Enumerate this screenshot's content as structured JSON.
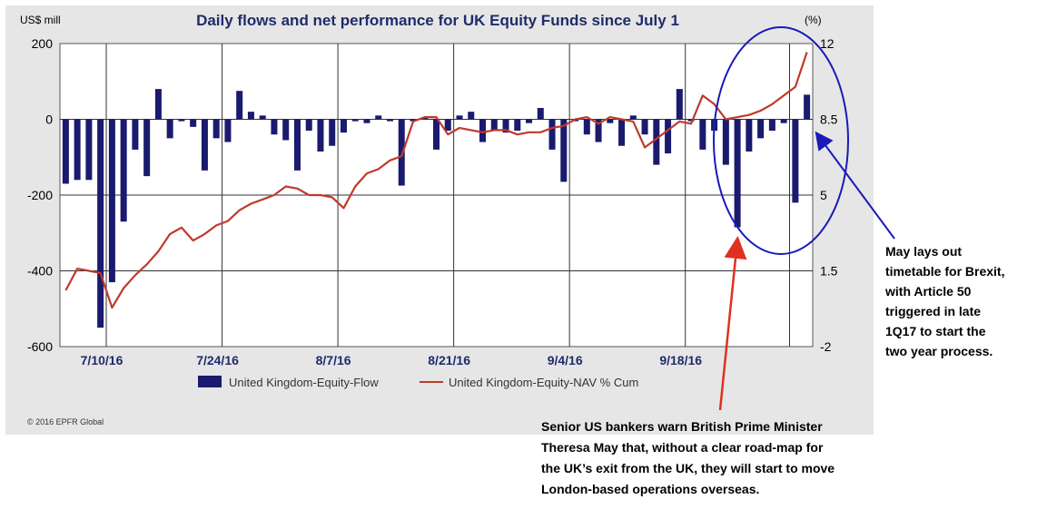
{
  "chart_data": {
    "type": "bar",
    "title": "Daily flows and net performance for UK Equity Funds since July 1",
    "y_left_unit": "US$ mill",
    "y_right_unit": "(%)",
    "ylim_left": [
      -600,
      200
    ],
    "ylim_right": [
      -2,
      12
    ],
    "y_left_ticks": [
      "200",
      "0",
      "-200",
      "-400",
      "-600"
    ],
    "y_right_ticks": [
      "12",
      "8.5",
      "5",
      "1.5",
      "-2"
    ],
    "x_tick_labels": [
      "7/10/16",
      "7/24/16",
      "8/7/16",
      "8/21/16",
      "9/4/16",
      "9/18/16"
    ],
    "grid": true,
    "legend_position": "bottom",
    "copyright": "© 2016 EPFR Global",
    "series": [
      {
        "name": "United Kingdom-Equity-Flow",
        "kind": "bar",
        "axis": "left",
        "color": "#1a1a6e",
        "values": [
          -170,
          -160,
          -160,
          -550,
          -430,
          -270,
          -80,
          -150,
          80,
          -50,
          -5,
          -20,
          -135,
          -50,
          -60,
          75,
          20,
          10,
          -40,
          -55,
          -135,
          -30,
          -85,
          -70,
          -35,
          -5,
          -10,
          10,
          -5,
          -175,
          -5,
          5,
          -80,
          -30,
          10,
          20,
          -60,
          -30,
          -35,
          -30,
          -10,
          30,
          -80,
          -165,
          -5,
          -40,
          -60,
          -10,
          -70,
          10,
          -40,
          -120,
          -90,
          80,
          -5,
          -80,
          -30,
          -120,
          -285,
          -85,
          -50,
          -30,
          -10,
          -220,
          65
        ]
      },
      {
        "name": "United Kingdom-Equity-NAV % Cum",
        "kind": "line",
        "axis": "right",
        "color": "#c0392b",
        "values": [
          0.6,
          1.6,
          1.5,
          1.4,
          -0.2,
          0.7,
          1.3,
          1.8,
          2.4,
          3.2,
          3.5,
          2.9,
          3.2,
          3.6,
          3.8,
          4.3,
          4.6,
          4.8,
          5.0,
          5.4,
          5.3,
          5.0,
          5.0,
          4.9,
          4.4,
          5.4,
          6.0,
          6.2,
          6.6,
          6.8,
          8.4,
          8.6,
          8.6,
          7.8,
          8.1,
          8.0,
          7.9,
          8.0,
          8.0,
          7.8,
          7.9,
          7.9,
          8.1,
          8.2,
          8.5,
          8.6,
          8.3,
          8.6,
          8.5,
          8.4,
          7.2,
          7.6,
          8.0,
          8.4,
          8.3,
          9.6,
          9.2,
          8.5,
          8.6,
          8.7,
          8.9,
          9.2,
          9.6,
          10.0,
          11.6
        ]
      }
    ]
  },
  "annotations": {
    "right_note": [
      "May lays out",
      "timetable for Brexit,",
      "with Article 50",
      "triggered in late",
      "1Q17 to start the",
      "two year process."
    ],
    "bottom_note": [
      "Senior US bankers warn British Prime Minister",
      "Theresa May that, without a clear road-map for",
      "the UK’s exit from the UK, they will start to move",
      "London-based operations overseas."
    ],
    "circle_color": "#1a1ab8",
    "right_arrow_color": "#1a1ab8",
    "bottom_arrow_color": "#e03020"
  }
}
